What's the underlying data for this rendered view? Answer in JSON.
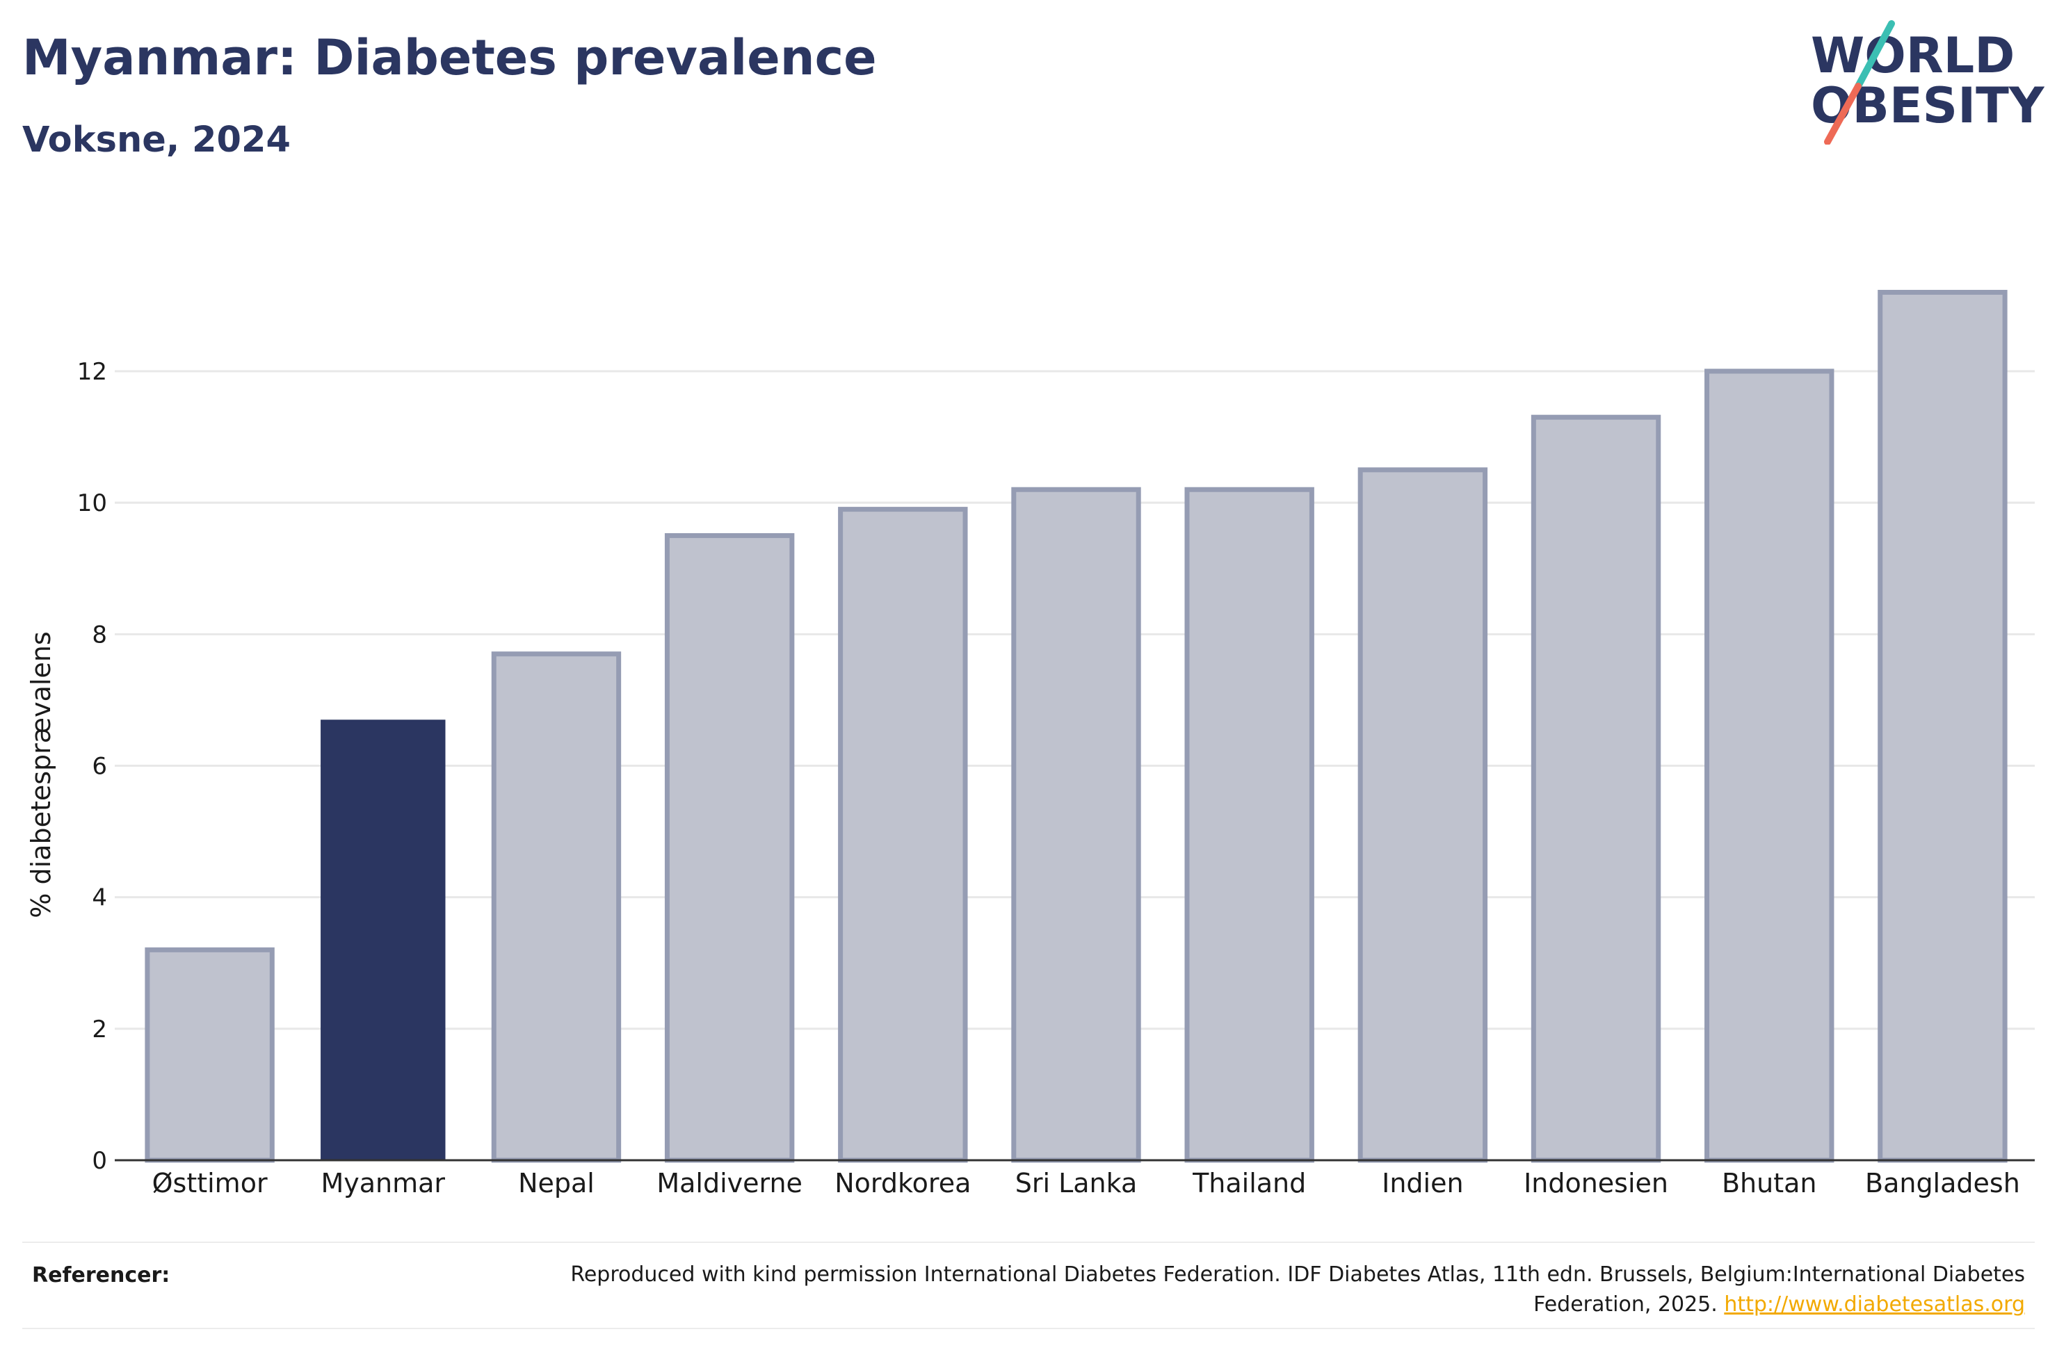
{
  "header": {
    "title": "Myanmar: Diabetes prevalence",
    "subtitle": "Voksne, 2024"
  },
  "logo": {
    "line1": "WORLD",
    "line2": "OBESITY",
    "text_color": "#2b3661",
    "slash_color_top": "#3bbfb3",
    "slash_color_bottom": "#ee6a56"
  },
  "chart_data": {
    "type": "bar",
    "categories": [
      "Østtimor",
      "Myanmar",
      "Nepal",
      "Maldiverne",
      "Nordkorea",
      "Sri Lanka",
      "Thailand",
      "Indien",
      "Indonesien",
      "Bhutan",
      "Bangladesh"
    ],
    "values": [
      3.2,
      6.7,
      7.7,
      9.5,
      9.9,
      10.2,
      10.2,
      10.5,
      11.3,
      12.0,
      13.2
    ],
    "highlight": "Myanmar",
    "ylabel": "% diabetesprævalens",
    "xlabel": "",
    "ylim": [
      0,
      13.2
    ],
    "yticks": [
      0,
      2,
      4,
      6,
      8,
      10,
      12
    ],
    "grid": true,
    "colors": {
      "highlight": "#2b3661",
      "other_fill": "#bfc2ce",
      "other_stroke": "#959cb3",
      "grid": "#e8e8e8",
      "axis": "#333333"
    }
  },
  "footer": {
    "label": "Referencer:",
    "text": "Reproduced with kind permission International Diabetes Federation. IDF Diabetes Atlas, 11th edn. Brussels, Belgium:International Diabetes Federation, 2025.",
    "link": "http://www.diabetesatlas.org"
  }
}
